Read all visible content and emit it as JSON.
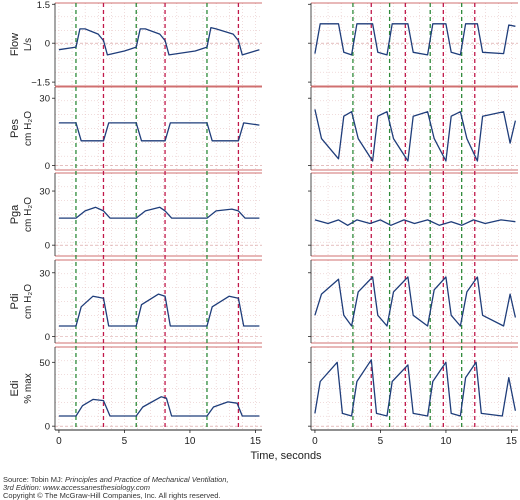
{
  "chart_data": {
    "type": "line",
    "xlabel": "Time, seconds",
    "x_ticks": [
      0,
      5,
      10,
      15
    ],
    "xlim": [
      -0.3,
      15.5
    ],
    "colors": {
      "trace": "#1f3d7a",
      "inspiration_marker": "#2f8a3a",
      "expiration_marker": "#c0184a",
      "border": "#c04040",
      "grid": "#e2b8b8"
    },
    "panels": [
      {
        "title": "Flow",
        "unit": "L/s",
        "ylim": [
          -1.65,
          1.55
        ],
        "y_ticks": [
          -1.5,
          0,
          1.5
        ],
        "y_tick_labels": [
          "−1.5",
          "0",
          "1.5"
        ]
      },
      {
        "title": "Pes",
        "unit": "cm H₂O",
        "ylim": [
          -2,
          35
        ],
        "y_ticks": [
          0,
          30
        ],
        "y_tick_labels": [
          "0",
          "30"
        ]
      },
      {
        "title": "Pga",
        "unit": "cm H₂O",
        "ylim": [
          -6,
          40
        ],
        "y_ticks": [
          0,
          30
        ],
        "y_tick_labels": [
          "0",
          "30"
        ]
      },
      {
        "title": "Pdi",
        "unit": "cm H₂O",
        "ylim": [
          -3,
          36
        ],
        "y_ticks": [
          0,
          30
        ],
        "y_tick_labels": [
          "0",
          "30"
        ]
      },
      {
        "title": "Edi",
        "unit": "% max",
        "ylim": [
          -3,
          62
        ],
        "y_ticks": [
          0,
          50
        ],
        "y_tick_labels": [
          "0",
          "50"
        ]
      }
    ],
    "recordings": [
      {
        "inspiration_markers": [
          1.3,
          5.9,
          11.3
        ],
        "expiration_markers": [
          3.4,
          8.1,
          13.7
        ],
        "series": [
          {
            "panel": "Flow",
            "x": [
              0,
              1.3,
              1.6,
              2.0,
              3.0,
              3.4,
              3.7,
              5.0,
              5.9,
              6.2,
              6.6,
              7.7,
              8.1,
              8.4,
              10.4,
              11.3,
              11.6,
              12.0,
              13.3,
              13.7,
              14.0,
              15.3
            ],
            "y": [
              -0.25,
              -0.15,
              0.55,
              0.55,
              0.35,
              0.1,
              -0.45,
              -0.3,
              -0.15,
              0.55,
              0.55,
              0.35,
              0.1,
              -0.45,
              -0.3,
              -0.15,
              0.6,
              0.55,
              0.35,
              0.1,
              -0.45,
              -0.25
            ]
          },
          {
            "panel": "Pes",
            "x": [
              0,
              1.3,
              1.7,
              3.4,
              3.8,
              5.9,
              6.3,
              8.1,
              8.5,
              11.3,
              11.7,
              13.7,
              14.1,
              15.3
            ],
            "y": [
              19,
              19,
              11,
              11,
              19,
              19,
              11,
              11,
              19,
              19,
              11,
              11,
              19,
              18
            ]
          },
          {
            "panel": "Pga",
            "x": [
              0,
              1.3,
              2.0,
              2.8,
              3.4,
              3.9,
              5.9,
              6.6,
              7.7,
              8.1,
              8.6,
              11.3,
              12.0,
              13.2,
              13.7,
              14.2,
              15.3
            ],
            "y": [
              15,
              15,
              19,
              21,
              19,
              15,
              15,
              19,
              21,
              19,
              15,
              15,
              19,
              20,
              19,
              15,
              15
            ]
          },
          {
            "panel": "Pdi",
            "x": [
              0,
              1.3,
              1.7,
              2.6,
              3.4,
              3.8,
              5.9,
              6.3,
              7.6,
              8.1,
              8.5,
              11.3,
              11.7,
              13.0,
              13.7,
              14.1,
              15.3
            ],
            "y": [
              5,
              5,
              14,
              19,
              18,
              5,
              5,
              15,
              20,
              19,
              5,
              5,
              14,
              19,
              18,
              5,
              5
            ]
          },
          {
            "panel": "Edi",
            "x": [
              0,
              1.3,
              1.8,
              2.6,
              3.4,
              3.9,
              5.9,
              6.4,
              7.8,
              8.2,
              8.6,
              11.3,
              11.8,
              12.9,
              13.6,
              14.0,
              15.3
            ],
            "y": [
              8,
              8,
              16,
              21,
              20,
              8,
              8,
              15,
              23,
              22,
              8,
              8,
              15,
              19,
              18,
              8,
              8
            ]
          }
        ]
      },
      {
        "inspiration_markers": [
          2.9,
          5.7,
          8.8,
          11.2
        ],
        "expiration_markers": [
          4.3,
          6.9,
          9.8,
          12.2
        ],
        "series": [
          {
            "panel": "Flow",
            "x": [
              0,
              0.4,
              1.8,
              2.2,
              2.8,
              3.2,
              4.4,
              4.8,
              5.5,
              5.9,
              7.1,
              7.5,
              8.6,
              9.0,
              10.0,
              10.4,
              11.1,
              11.5,
              12.4,
              12.8,
              14.4,
              14.8,
              15.3
            ],
            "y": [
              -0.4,
              0.75,
              0.75,
              -0.35,
              -0.45,
              0.75,
              0.75,
              -0.35,
              -0.45,
              0.75,
              0.75,
              -0.35,
              -0.45,
              0.75,
              0.75,
              -0.35,
              -0.45,
              0.75,
              0.75,
              -0.35,
              -0.4,
              0.7,
              0.65
            ]
          },
          {
            "panel": "Pes",
            "x": [
              0,
              0.5,
              1.8,
              2.2,
              2.8,
              3.3,
              4.4,
              4.8,
              5.5,
              6.0,
              7.1,
              7.5,
              8.6,
              9.1,
              10.0,
              10.4,
              11.1,
              11.6,
              12.4,
              12.8,
              14.4,
              14.9,
              15.3
            ],
            "y": [
              25,
              12,
              3,
              22,
              24,
              12,
              2,
              22,
              24,
              12,
              2,
              22,
              24,
              12,
              2,
              22,
              24,
              12,
              2,
              22,
              24,
              10,
              20
            ]
          },
          {
            "panel": "Pga",
            "x": [
              0,
              1.0,
              1.8,
              2.5,
              3.2,
              4.2,
              5.0,
              5.8,
              6.8,
              7.6,
              8.6,
              9.5,
              10.4,
              11.2,
              12.1,
              13.0,
              14.2,
              15.3
            ],
            "y": [
              14,
              12,
              14,
              11,
              14,
              12,
              14,
              11,
              14,
              12,
              14,
              11,
              13,
              11,
              14,
              12,
              14,
              13
            ]
          },
          {
            "panel": "Pdi",
            "x": [
              0,
              0.5,
              1.8,
              2.2,
              2.8,
              3.3,
              4.4,
              4.8,
              5.5,
              6.0,
              7.1,
              7.5,
              8.6,
              9.1,
              10.0,
              10.4,
              11.1,
              11.6,
              12.4,
              12.8,
              14.4,
              14.9,
              15.3
            ],
            "y": [
              10,
              20,
              27,
              10,
              5,
              21,
              28,
              10,
              5,
              21,
              28,
              10,
              5,
              22,
              28,
              10,
              5,
              21,
              28,
              10,
              5,
              20,
              9
            ]
          },
          {
            "panel": "Edi",
            "x": [
              0,
              0.4,
              1.7,
              2.1,
              2.8,
              3.2,
              4.3,
              4.7,
              5.5,
              5.9,
              7.1,
              7.5,
              8.6,
              9.0,
              10.0,
              10.4,
              11.1,
              11.5,
              12.3,
              12.7,
              14.3,
              14.8,
              15.3
            ],
            "y": [
              10,
              35,
              50,
              10,
              8,
              35,
              52,
              10,
              8,
              35,
              48,
              10,
              8,
              35,
              50,
              10,
              8,
              38,
              50,
              10,
              8,
              38,
              12
            ]
          }
        ]
      }
    ]
  },
  "source": {
    "line1_prefix": "Source: Tobin MJ: ",
    "line1_title": "Principles and Practice of Mechanical Ventilation,",
    "line2": "3rd Edition: www.accessanesthesiology.com",
    "line3": "Copyright © The McGraw-Hill Companies, Inc. All rights reserved."
  }
}
